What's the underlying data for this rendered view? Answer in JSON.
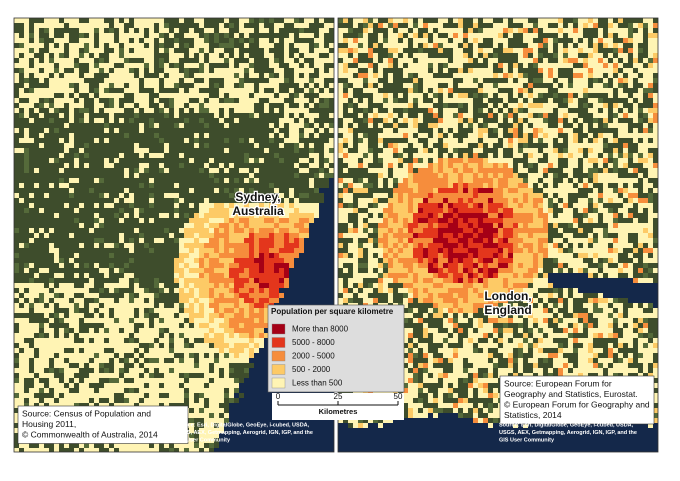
{
  "panels": [
    {
      "place": [
        "Sydney,",
        "Australia"
      ],
      "source": [
        "Source: Census of Population and",
        "Housing 2011,",
        "© Commonwealth of Australia, 2014"
      ],
      "attribution": [
        "Source: Esri, DigitalGlobe, GeoEye, i-cubed, USDA,",
        "USGS, AEX, Getmapping, Aerogrid, IGN, IGP, and the",
        "GIS User Community"
      ]
    },
    {
      "place": [
        "London,",
        "England"
      ],
      "source": [
        "Source: European Forum for",
        "Geography and Statistics, Eurostat.",
        "© European Forum for Geography and",
        "Statistics, 2014"
      ],
      "attribution": [
        "Source: Esri, DigitalGlobe, GeoEye, i-cubed, USDA,",
        "USGS, AEX, Getmapping, Aerogrid, IGN, IGP, and the",
        "GIS User Community"
      ]
    }
  ],
  "legend": {
    "title": "Population per square kilometre",
    "items": [
      {
        "label": "More than 8000",
        "color": "#a50016"
      },
      {
        "label": "5000 - 8000",
        "color": "#e3361c"
      },
      {
        "label": "2000 - 5000",
        "color": "#f68d3c"
      },
      {
        "label": "500 - 2000",
        "color": "#fdca66"
      },
      {
        "label": "Less than 500",
        "color": "#fff4b4"
      }
    ]
  },
  "scale_bar": {
    "ticks": [
      0,
      25,
      50
    ],
    "unit": "Kilometres"
  }
}
